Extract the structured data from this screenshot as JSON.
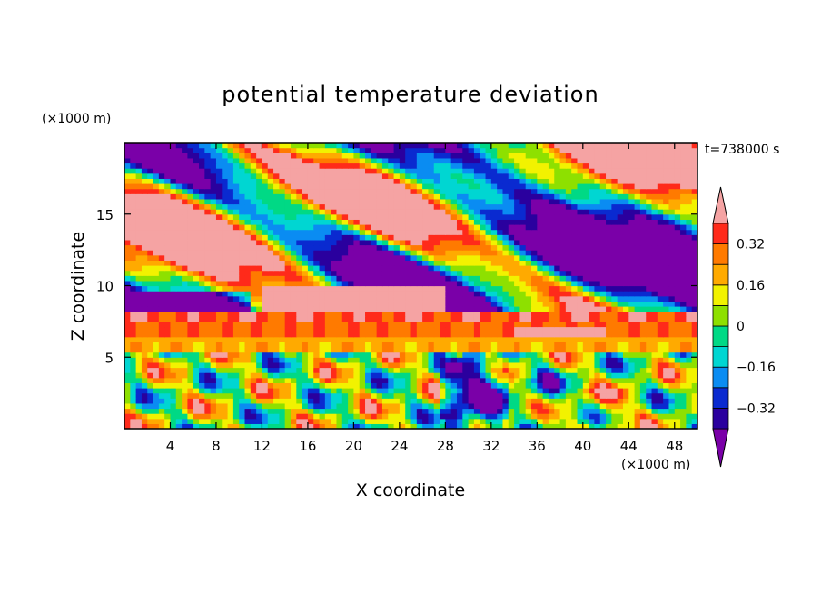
{
  "chart_data": {
    "type": "heatmap",
    "title": "potential temperature deviation",
    "time_label": "t=738000 s",
    "xlabel": "X coordinate",
    "ylabel": "Z coordinate",
    "x_unit": "(×1000 m)",
    "y_unit": "(×1000 m)",
    "xlim": [
      0,
      50
    ],
    "ylim": [
      0,
      20
    ],
    "x_ticks": [
      4,
      8,
      12,
      16,
      20,
      24,
      28,
      32,
      36,
      40,
      44,
      48
    ],
    "y_ticks": [
      5,
      10,
      15
    ],
    "colorbar": {
      "tick_labels": [
        "0.32",
        "0.16",
        "0",
        "−0.16",
        "−0.32"
      ],
      "tick_values": [
        0.32,
        0.16,
        0,
        -0.16,
        -0.32
      ],
      "levels": [
        -0.4,
        -0.32,
        -0.24,
        -0.16,
        -0.08,
        0,
        0.08,
        0.16,
        0.24,
        0.32,
        0.4
      ],
      "colors": [
        "#7a00a8",
        "#2a009e",
        "#0a2ad0",
        "#0a8cf2",
        "#00d6d2",
        "#00d985",
        "#8ee000",
        "#f2f200",
        "#ffaa00",
        "#ff7a00",
        "#ff2a1a",
        "#f5a3a3"
      ]
    }
  }
}
